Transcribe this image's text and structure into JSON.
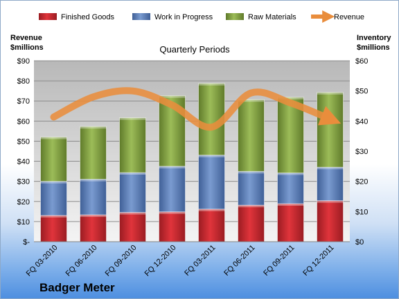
{
  "chart_data": {
    "type": "bar",
    "stacked": true,
    "title": "Quarterly Periods",
    "company": "Badger Meter",
    "ylabel_left": [
      "Revenue",
      "$millions"
    ],
    "ylabel_right": [
      "Inventory",
      "$millions"
    ],
    "categories": [
      "FQ 03-2010",
      "FQ 06-2010",
      "FQ 09-2010",
      "FQ 12-2010",
      "FQ 03-2011",
      "FQ 06-2011",
      "FQ 09-2011",
      "FQ 12-2011"
    ],
    "left_axis": {
      "min": 0,
      "max": 90,
      "step": 10,
      "tick_labels": [
        "$-",
        "$10",
        "$20",
        "$30",
        "$40",
        "$50",
        "$60",
        "$70",
        "$80",
        "$90"
      ]
    },
    "right_axis": {
      "min": 0,
      "max": 60,
      "step": 10,
      "tick_labels": [
        "$0",
        "$10",
        "$20",
        "$30",
        "$40",
        "$50",
        "$60"
      ]
    },
    "series": [
      {
        "name": "Finished Goods",
        "axis": "right",
        "color": "#c0262d",
        "values": [
          8.7,
          8.9,
          9.7,
          9.9,
          10.8,
          12.1,
          12.6,
          13.6
        ]
      },
      {
        "name": "Work in Progress",
        "axis": "right",
        "color": "#5579b2",
        "values": [
          11.3,
          11.8,
          13.2,
          15.1,
          17.9,
          11.2,
          10.2,
          11.1
        ]
      },
      {
        "name": "Raw Materials",
        "axis": "right",
        "color": "#7c9a3c",
        "values": [
          14.7,
          17.5,
          18.2,
          23.4,
          23.8,
          23.8,
          25.1,
          24.8
        ]
      },
      {
        "name": "Revenue",
        "axis": "left",
        "type": "line",
        "color": "#e98d3c",
        "values": [
          62,
          72,
          75,
          68,
          57,
          74,
          69,
          61
        ]
      }
    ],
    "legend_position": "top",
    "grid": true
  }
}
